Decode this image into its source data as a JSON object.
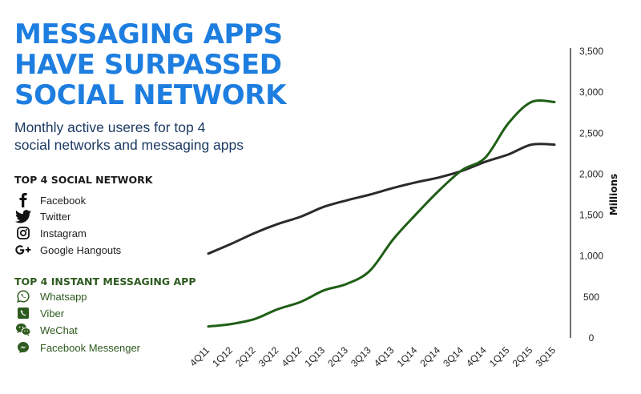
{
  "title": [
    "MESSAGING APPS",
    "HAVE SURPASSED",
    "SOCIAL NETWORK"
  ],
  "subtitle": [
    "Monthly active useres for top 4",
    "social networks and messaging apps"
  ],
  "social_section": {
    "heading": "TOP 4 SOCIAL NETWORK",
    "items": [
      {
        "label": "Facebook",
        "icon": "facebook-icon"
      },
      {
        "label": "Twitter",
        "icon": "twitter-icon"
      },
      {
        "label": "Instagram",
        "icon": "instagram-icon"
      },
      {
        "label": "Google Hangouts",
        "icon": "google-plus-icon"
      }
    ]
  },
  "messaging_section": {
    "heading": "TOP 4 INSTANT MESSAGING APP",
    "items": [
      {
        "label": "Whatsapp",
        "icon": "whatsapp-icon"
      },
      {
        "label": "Viber",
        "icon": "viber-icon"
      },
      {
        "label": "WeChat",
        "icon": "wechat-icon"
      },
      {
        "label": "Facebook Messenger",
        "icon": "messenger-icon"
      }
    ]
  },
  "colors": {
    "title": "#1e7ee0",
    "subtitle": "#1c3a63",
    "social_line": "#2b2b2b",
    "messaging_line": "#1f5f16",
    "messaging_text": "#2d5a1e"
  },
  "chart_data": {
    "type": "line",
    "ylabel": "Millions",
    "ylim": [
      0,
      3500
    ],
    "yticks": [
      "0",
      "500",
      "1,000",
      "1,500",
      "2,000",
      "2,500",
      "3,000",
      "3,500"
    ],
    "y_axis_side": "right",
    "grid": false,
    "categories": [
      "4Q11",
      "1Q12",
      "2Q12",
      "3Q12",
      "4Q12",
      "1Q13",
      "2Q13",
      "3Q13",
      "4Q13",
      "1Q14",
      "2Q14",
      "3Q14",
      "4Q14",
      "1Q15",
      "2Q15",
      "3Q15"
    ],
    "series": [
      {
        "values": [
          1030,
          1150,
          1280,
          1390,
          1480,
          1600,
          1680,
          1750,
          1830,
          1900,
          1960,
          2040,
          2150,
          2240,
          2360,
          2360
        ],
        "color": "#2b2b2b"
      },
      {
        "values": [
          140,
          170,
          230,
          350,
          440,
          580,
          660,
          820,
          1200,
          1510,
          1800,
          2050,
          2200,
          2620,
          2880,
          2880
        ],
        "color": "#1f5f16"
      }
    ]
  }
}
